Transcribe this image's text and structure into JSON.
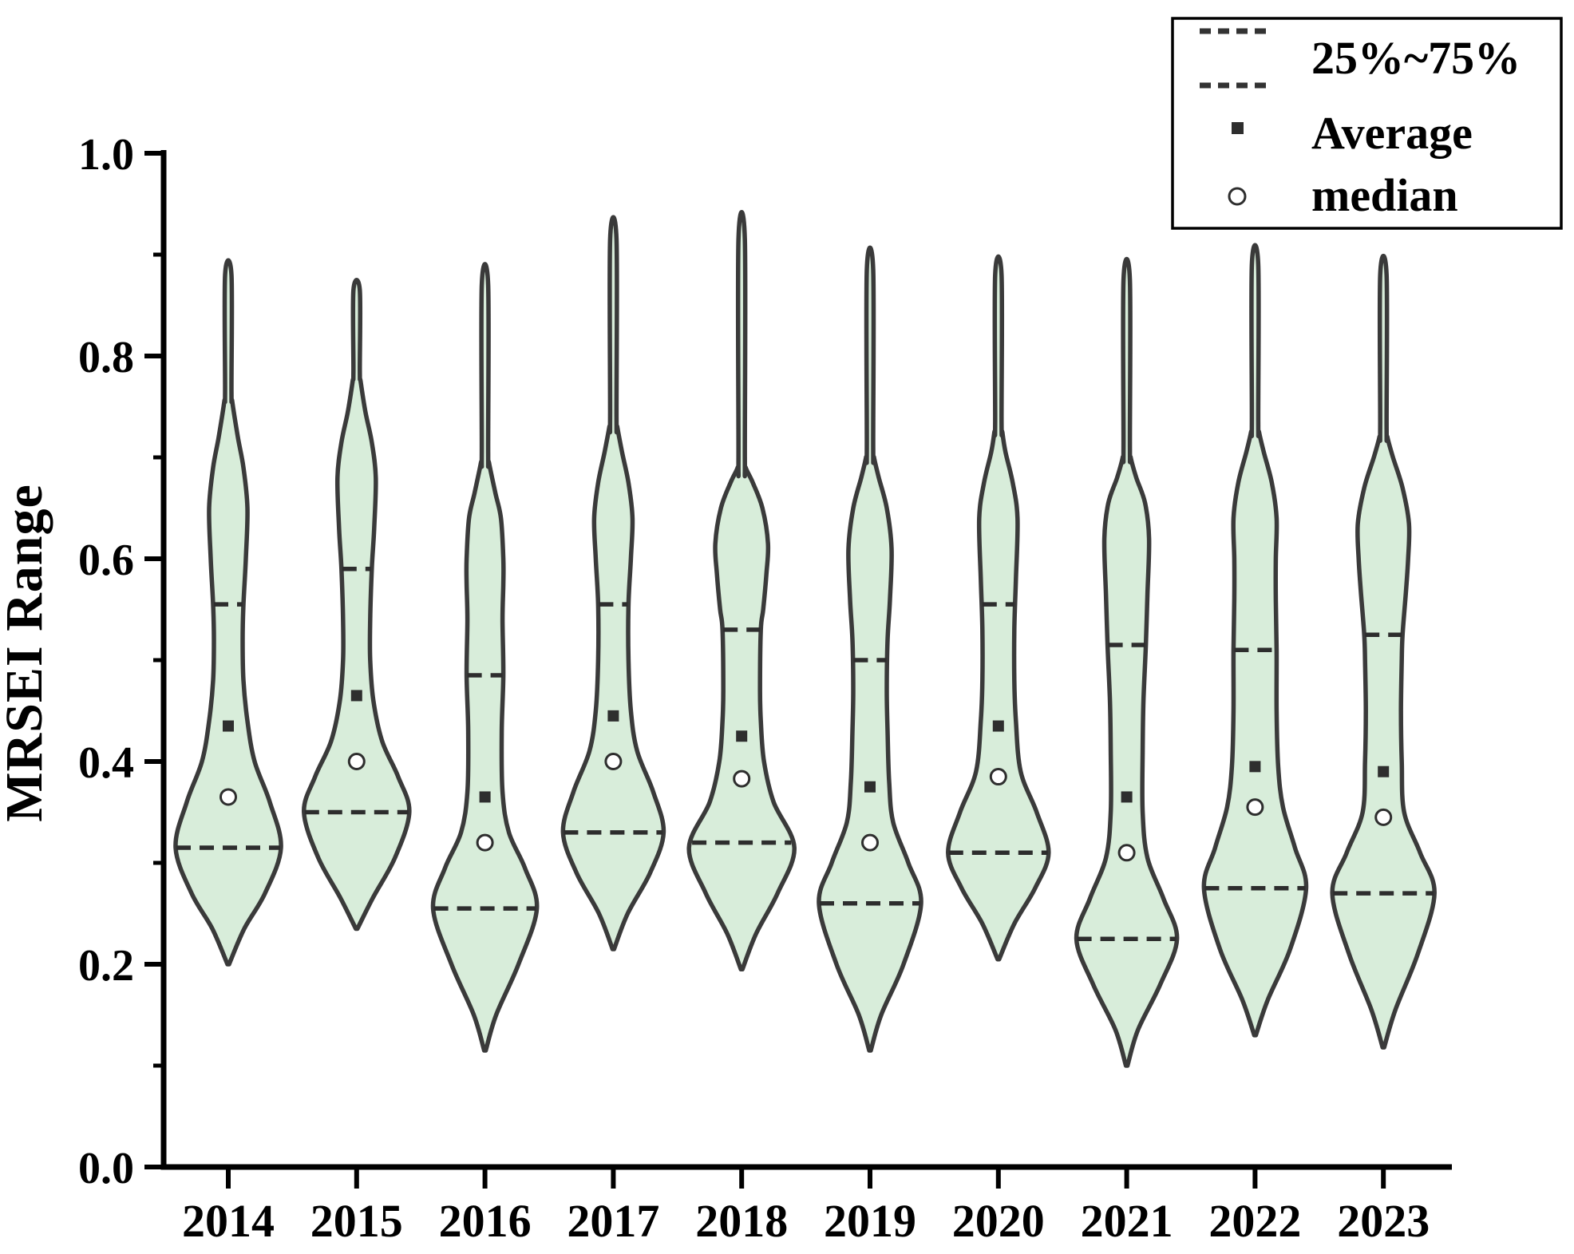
{
  "chart_data": {
    "type": "violin",
    "title": "",
    "xlabel": "",
    "ylabel": "MRSEI Range",
    "ylim": [
      0.0,
      1.0
    ],
    "y_major_ticks": [
      "0.0",
      "0.2",
      "0.4",
      "0.6",
      "0.8",
      "1.0"
    ],
    "y_major_values": [
      0.0,
      0.2,
      0.4,
      0.6,
      0.8,
      1.0
    ],
    "y_minor_values": [
      0.1,
      0.3,
      0.5,
      0.7,
      0.9
    ],
    "grid": false,
    "legend_position": "top-right",
    "legend": {
      "items": [
        {
          "symbol": "dashed-line-pair",
          "label": "25%~75%"
        },
        {
          "symbol": "filled-square",
          "label": "Average"
        },
        {
          "symbol": "open-circle",
          "label": "median"
        }
      ]
    },
    "categories": [
      "2014",
      "2015",
      "2016",
      "2017",
      "2018",
      "2019",
      "2020",
      "2021",
      "2022",
      "2023"
    ],
    "series": [
      {
        "year": "2014",
        "min": 0.2,
        "q25": 0.315,
        "median": 0.365,
        "mean": 0.435,
        "q75": 0.555,
        "max": 0.88,
        "profile": [
          [
            0.2,
            1
          ],
          [
            0.235,
            20
          ],
          [
            0.27,
            46
          ],
          [
            0.315,
            66
          ],
          [
            0.36,
            52
          ],
          [
            0.4,
            33
          ],
          [
            0.44,
            24
          ],
          [
            0.48,
            19
          ],
          [
            0.52,
            18
          ],
          [
            0.555,
            19
          ],
          [
            0.6,
            22
          ],
          [
            0.65,
            24
          ],
          [
            0.69,
            19
          ],
          [
            0.72,
            12
          ],
          [
            0.755,
            5
          ],
          [
            0.765,
            4
          ],
          [
            0.88,
            4
          ]
        ]
      },
      {
        "year": "2015",
        "min": 0.235,
        "q25": 0.35,
        "median": 0.4,
        "mean": 0.465,
        "q75": 0.59,
        "max": 0.865,
        "profile": [
          [
            0.235,
            1
          ],
          [
            0.265,
            20
          ],
          [
            0.305,
            48
          ],
          [
            0.35,
            66
          ],
          [
            0.385,
            52
          ],
          [
            0.42,
            32
          ],
          [
            0.46,
            21
          ],
          [
            0.5,
            17
          ],
          [
            0.54,
            17
          ],
          [
            0.59,
            19
          ],
          [
            0.63,
            22
          ],
          [
            0.68,
            24
          ],
          [
            0.715,
            19
          ],
          [
            0.745,
            11
          ],
          [
            0.775,
            5
          ],
          [
            0.785,
            4
          ],
          [
            0.865,
            4
          ]
        ]
      },
      {
        "year": "2016",
        "min": 0.115,
        "q25": 0.255,
        "median": 0.32,
        "mean": 0.365,
        "q75": 0.485,
        "max": 0.87,
        "profile": [
          [
            0.115,
            1
          ],
          [
            0.15,
            14
          ],
          [
            0.2,
            42
          ],
          [
            0.255,
            65
          ],
          [
            0.295,
            50
          ],
          [
            0.33,
            30
          ],
          [
            0.37,
            22
          ],
          [
            0.43,
            21
          ],
          [
            0.485,
            23
          ],
          [
            0.54,
            22
          ],
          [
            0.575,
            23
          ],
          [
            0.6,
            23
          ],
          [
            0.64,
            20
          ],
          [
            0.665,
            13
          ],
          [
            0.695,
            5
          ],
          [
            0.705,
            4
          ],
          [
            0.87,
            4
          ]
        ]
      },
      {
        "year": "2017",
        "min": 0.215,
        "q25": 0.33,
        "median": 0.4,
        "mean": 0.445,
        "q75": 0.555,
        "max": 0.915,
        "profile": [
          [
            0.215,
            1
          ],
          [
            0.25,
            18
          ],
          [
            0.29,
            46
          ],
          [
            0.33,
            63
          ],
          [
            0.37,
            50
          ],
          [
            0.41,
            30
          ],
          [
            0.45,
            22
          ],
          [
            0.5,
            19
          ],
          [
            0.555,
            19
          ],
          [
            0.6,
            22
          ],
          [
            0.64,
            24
          ],
          [
            0.675,
            19
          ],
          [
            0.705,
            11
          ],
          [
            0.73,
            5
          ],
          [
            0.74,
            4
          ],
          [
            0.915,
            4
          ]
        ]
      },
      {
        "year": "2018",
        "min": 0.195,
        "q25": 0.32,
        "median": 0.383,
        "mean": 0.425,
        "q75": 0.53,
        "max": 0.915,
        "profile": [
          [
            0.195,
            1
          ],
          [
            0.23,
            18
          ],
          [
            0.27,
            45
          ],
          [
            0.315,
            66
          ],
          [
            0.36,
            40
          ],
          [
            0.4,
            28
          ],
          [
            0.44,
            24
          ],
          [
            0.47,
            23
          ],
          [
            0.53,
            24
          ],
          [
            0.55,
            27
          ],
          [
            0.585,
            31
          ],
          [
            0.615,
            33
          ],
          [
            0.65,
            26
          ],
          [
            0.675,
            14
          ],
          [
            0.69,
            5
          ],
          [
            0.7,
            4
          ],
          [
            0.915,
            4
          ]
        ]
      },
      {
        "year": "2019",
        "min": 0.115,
        "q25": 0.26,
        "median": 0.32,
        "mean": 0.375,
        "q75": 0.5,
        "max": 0.885,
        "profile": [
          [
            0.115,
            1
          ],
          [
            0.15,
            14
          ],
          [
            0.2,
            42
          ],
          [
            0.26,
            64
          ],
          [
            0.3,
            48
          ],
          [
            0.34,
            29
          ],
          [
            0.38,
            24
          ],
          [
            0.43,
            22
          ],
          [
            0.47,
            21
          ],
          [
            0.52,
            22
          ],
          [
            0.56,
            25
          ],
          [
            0.61,
            27
          ],
          [
            0.65,
            21
          ],
          [
            0.68,
            11
          ],
          [
            0.7,
            5
          ],
          [
            0.71,
            4
          ],
          [
            0.885,
            4
          ]
        ]
      },
      {
        "year": "2020",
        "min": 0.205,
        "q25": 0.31,
        "median": 0.385,
        "mean": 0.435,
        "q75": 0.555,
        "max": 0.88,
        "profile": [
          [
            0.205,
            1
          ],
          [
            0.24,
            20
          ],
          [
            0.275,
            46
          ],
          [
            0.31,
            63
          ],
          [
            0.35,
            48
          ],
          [
            0.39,
            28
          ],
          [
            0.44,
            22
          ],
          [
            0.48,
            20
          ],
          [
            0.53,
            20
          ],
          [
            0.58,
            22
          ],
          [
            0.64,
            24
          ],
          [
            0.675,
            18
          ],
          [
            0.705,
            9
          ],
          [
            0.725,
            5
          ],
          [
            0.735,
            4
          ],
          [
            0.88,
            4
          ]
        ]
      },
      {
        "year": "2021",
        "min": 0.1,
        "q25": 0.225,
        "median": 0.31,
        "mean": 0.365,
        "q75": 0.515,
        "max": 0.875,
        "profile": [
          [
            0.1,
            1
          ],
          [
            0.135,
            14
          ],
          [
            0.18,
            42
          ],
          [
            0.225,
            63
          ],
          [
            0.265,
            46
          ],
          [
            0.305,
            26
          ],
          [
            0.35,
            20
          ],
          [
            0.41,
            20
          ],
          [
            0.46,
            21
          ],
          [
            0.515,
            24
          ],
          [
            0.565,
            26
          ],
          [
            0.62,
            28
          ],
          [
            0.655,
            23
          ],
          [
            0.68,
            12
          ],
          [
            0.7,
            5
          ],
          [
            0.71,
            4
          ],
          [
            0.875,
            4
          ]
        ]
      },
      {
        "year": "2022",
        "min": 0.13,
        "q25": 0.275,
        "median": 0.355,
        "mean": 0.395,
        "q75": 0.51,
        "max": 0.89,
        "profile": [
          [
            0.13,
            1
          ],
          [
            0.165,
            16
          ],
          [
            0.215,
            44
          ],
          [
            0.275,
            64
          ],
          [
            0.315,
            50
          ],
          [
            0.355,
            35
          ],
          [
            0.395,
            29
          ],
          [
            0.45,
            27
          ],
          [
            0.51,
            27
          ],
          [
            0.56,
            26
          ],
          [
            0.6,
            26
          ],
          [
            0.64,
            27
          ],
          [
            0.675,
            21
          ],
          [
            0.705,
            11
          ],
          [
            0.725,
            5
          ],
          [
            0.735,
            4
          ],
          [
            0.89,
            4
          ]
        ]
      },
      {
        "year": "2023",
        "min": 0.118,
        "q25": 0.27,
        "median": 0.345,
        "mean": 0.39,
        "q75": 0.525,
        "max": 0.88,
        "profile": [
          [
            0.118,
            1
          ],
          [
            0.155,
            15
          ],
          [
            0.21,
            43
          ],
          [
            0.27,
            64
          ],
          [
            0.31,
            46
          ],
          [
            0.35,
            26
          ],
          [
            0.4,
            23
          ],
          [
            0.45,
            22
          ],
          [
            0.5,
            23
          ],
          [
            0.525,
            24
          ],
          [
            0.565,
            28
          ],
          [
            0.6,
            31
          ],
          [
            0.635,
            32
          ],
          [
            0.67,
            24
          ],
          [
            0.7,
            12
          ],
          [
            0.72,
            5
          ],
          [
            0.73,
            4
          ],
          [
            0.88,
            4
          ]
        ]
      }
    ],
    "colors": {
      "violin_fill": "#d8edda",
      "violin_outline": "#3a3a3a",
      "quantile_dash": "#2d2d2d",
      "mean_square": "#2e2e2e",
      "median_circle_fill": "#ffffff",
      "median_circle_edge": "#2e2e2e",
      "axis": "#000000",
      "background": "#ffffff"
    }
  }
}
